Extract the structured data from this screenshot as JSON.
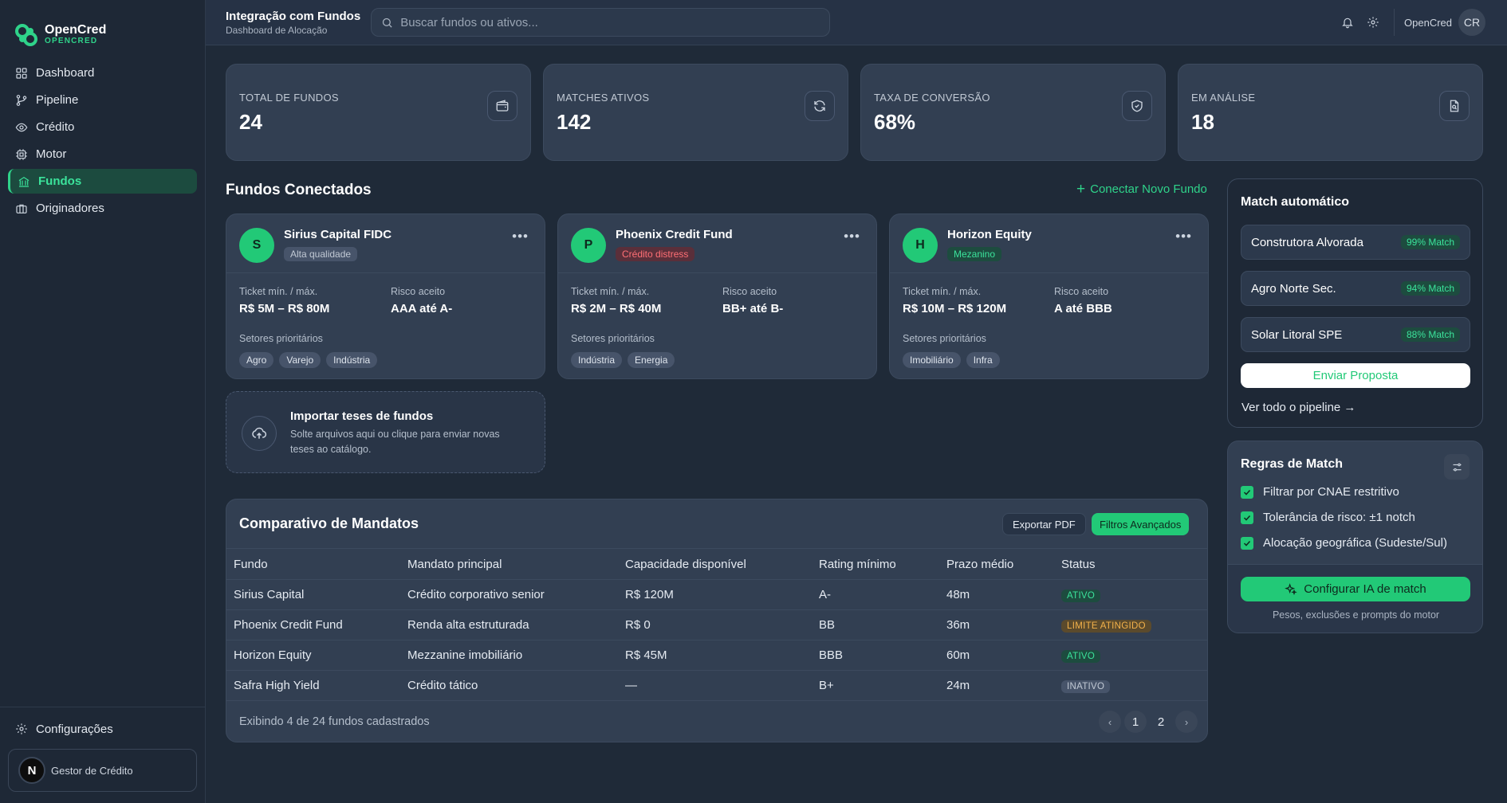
{
  "brand": {
    "name": "OpenCred",
    "sub": "OPENCRED"
  },
  "sidebar": {
    "items": [
      {
        "label": "Dashboard",
        "icon": "grid-icon"
      },
      {
        "label": "Pipeline",
        "icon": "git-branch-icon"
      },
      {
        "label": "Crédito",
        "icon": "eye-icon"
      },
      {
        "label": "Motor",
        "icon": "cpu-icon"
      },
      {
        "label": "Fundos",
        "icon": "bank-icon",
        "active": true
      },
      {
        "label": "Originadores",
        "icon": "briefcase-icon"
      }
    ],
    "settings_label": "Configurações",
    "user": {
      "initial": "N",
      "name": "Gestor de Crédito"
    }
  },
  "header": {
    "title": "Integração com Fundos",
    "subtitle": "Dashboard de Alocação",
    "search_placeholder": "Buscar fundos ou ativos...",
    "user_name": "OpenCred",
    "user_initials": "CR"
  },
  "stats": [
    {
      "label": "TOTAL DE FUNDOS",
      "value": "24",
      "icon": "wallet-icon"
    },
    {
      "label": "MATCHES ATIVOS",
      "value": "142",
      "icon": "refresh-icon"
    },
    {
      "label": "TAXA DE CONVERSÃO",
      "value": "68%",
      "icon": "shield-check-icon"
    },
    {
      "label": "EM ANÁLISE",
      "value": "18",
      "icon": "file-search-icon"
    }
  ],
  "funds_section": {
    "title": "Fundos Conectados",
    "connect_label": "Conectar Novo Fundo"
  },
  "funds": [
    {
      "initial": "S",
      "name": "Sirius Capital FIDC",
      "badge": "Alta qualidade",
      "badge_color": "gray",
      "ticket_label": "Ticket mín. / máx.",
      "ticket": "R$ 5M – R$ 80M",
      "risk_label": "Risco aceito",
      "risk": "AAA até A-",
      "sectors_label": "Setores prioritários",
      "sectors": [
        "Agro",
        "Varejo",
        "Indústria"
      ]
    },
    {
      "initial": "P",
      "name": "Phoenix Credit Fund",
      "badge": "Crédito distress",
      "badge_color": "red",
      "ticket_label": "Ticket mín. / máx.",
      "ticket": "R$ 2M – R$ 40M",
      "risk_label": "Risco aceito",
      "risk": "BB+ até B-",
      "sectors_label": "Setores prioritários",
      "sectors": [
        "Indústria",
        "Energia"
      ]
    },
    {
      "initial": "H",
      "name": "Horizon Equity",
      "badge": "Mezanino",
      "badge_color": "green",
      "ticket_label": "Ticket mín. / máx.",
      "ticket": "R$ 10M – R$ 120M",
      "risk_label": "Risco aceito",
      "risk": "A até BBB",
      "sectors_label": "Setores prioritários",
      "sectors": [
        "Imobiliário",
        "Infra"
      ]
    }
  ],
  "import": {
    "title": "Importar teses de fundos",
    "desc": "Solte arquivos aqui ou clique para enviar novas teses ao catálogo."
  },
  "mandates": {
    "title": "Comparativo de Mandatos",
    "export_label": "Exportar PDF",
    "filters_label": "Filtros Avançados",
    "columns": [
      "Fundo",
      "Mandato principal",
      "Capacidade disponível",
      "Rating mínimo",
      "Prazo médio",
      "Status"
    ],
    "rows": [
      {
        "fund": "Sirius Capital",
        "mandate": "Crédito corporativo senior",
        "capacity": "R$ 120M",
        "rating": "A-",
        "term": "48m",
        "status": "ATIVO",
        "status_type": "ativo"
      },
      {
        "fund": "Phoenix Credit Fund",
        "mandate": "Renda alta estruturada",
        "capacity": "R$ 0",
        "rating": "BB",
        "term": "36m",
        "status": "LIMITE ATINGIDO",
        "status_type": "limite"
      },
      {
        "fund": "Horizon Equity",
        "mandate": "Mezzanine imobiliário",
        "capacity": "R$ 45M",
        "rating": "BBB",
        "term": "60m",
        "status": "ATIVO",
        "status_type": "ativo"
      },
      {
        "fund": "Safra High Yield",
        "mandate": "Crédito tático",
        "capacity": "—",
        "rating": "B+",
        "term": "24m",
        "status": "INATIVO",
        "status_type": "inativo"
      }
    ],
    "footer": "Exibindo 4 de 24 fundos cadastrados",
    "pages": [
      "1",
      "2"
    ],
    "prev": "‹",
    "next": "›"
  },
  "match": {
    "title": "Match automático",
    "items": [
      {
        "name": "Construtora Alvorada",
        "score": "99% Match"
      },
      {
        "name": "Agro Norte Sec.",
        "score": "94% Match"
      },
      {
        "name": "Solar Litoral SPE",
        "score": "88% Match"
      }
    ],
    "send_label": "Enviar Proposta",
    "pipeline_label": "Ver todo o pipeline →"
  },
  "rules": {
    "title": "Regras de Match",
    "items": [
      "Filtrar por CNAE restritivo",
      "Tolerância de risco: ±1 notch",
      "Alocação geográfica (Sudeste/Sul)"
    ],
    "ia_label": "Configurar IA de match",
    "hint": "Pesos, exclusões e prompts do motor"
  }
}
